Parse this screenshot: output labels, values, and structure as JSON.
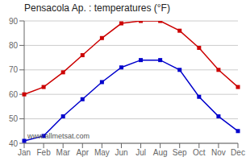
{
  "chart_data": {
    "type": "line",
    "title": "Pensacola Ap. : temperatures (°F)",
    "categories": [
      "Jan",
      "Feb",
      "Mar",
      "Apr",
      "May",
      "Jun",
      "Jul",
      "Aug",
      "Sep",
      "Oct",
      "Nov",
      "Dec"
    ],
    "series": [
      {
        "color": "#cc0000",
        "values": [
          60,
          63,
          69,
          76,
          83,
          89,
          90,
          90,
          86,
          79,
          70,
          63
        ]
      },
      {
        "color": "#0000cc",
        "values": [
          41,
          43,
          51,
          58,
          65,
          71,
          74,
          74,
          70,
          59,
          51,
          45
        ]
      }
    ],
    "ylim": [
      40,
      90
    ],
    "yticks": [
      40,
      50,
      60,
      70,
      80,
      90
    ],
    "grid": "y",
    "marker": "square",
    "line_style": "solid",
    "annotations": [
      "www.allmetsat.com"
    ]
  }
}
